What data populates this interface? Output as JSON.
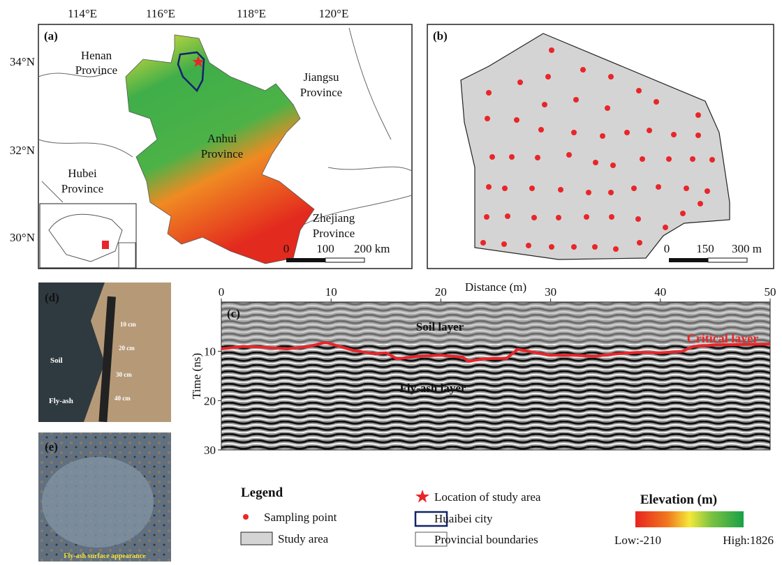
{
  "panel_a": {
    "label": "(a)",
    "lon_labels": [
      "114°E",
      "116°E",
      "118°E",
      "120°E"
    ],
    "lat_labels": [
      "34°N",
      "32°N",
      "30°N"
    ],
    "places": [
      [
        "Henan",
        "Province"
      ],
      [
        "Jiangsu",
        "Province"
      ],
      [
        "Anhui",
        "Province"
      ],
      [
        "Hubei",
        "Province"
      ],
      [
        "Zhejiang",
        "Province"
      ]
    ],
    "scale_bar": [
      "0",
      "100",
      "200 km"
    ]
  },
  "panel_b": {
    "label": "(b)",
    "scale_bar": [
      "0",
      "150",
      "300 m"
    ]
  },
  "panel_c": {
    "label": "(c)",
    "xlabel": "Distance (m)",
    "ylabel": "Time (ns)",
    "xlim": [
      0,
      50
    ],
    "ylim": [
      0,
      30
    ],
    "xticks": [
      0,
      10,
      20,
      30,
      40,
      50
    ],
    "yticks": [
      10,
      20,
      30
    ],
    "annotations": [
      "Soil layer",
      "Fly-ash layer",
      "Critical layer"
    ],
    "critical_layer": {
      "color": "#e8262a",
      "x": [
        0,
        2,
        4,
        6,
        8,
        9.5,
        10,
        12,
        14,
        15,
        16,
        18,
        20,
        22,
        22.5,
        24,
        26,
        27,
        28,
        30,
        32,
        34,
        36,
        38,
        40,
        42,
        43,
        45,
        50
      ],
      "values": [
        9.5,
        9,
        9.2,
        9.5,
        9,
        8.2,
        8.5,
        9.8,
        10.5,
        10.3,
        11.5,
        11,
        10.8,
        11.2,
        12,
        11.5,
        11.4,
        9.6,
        10,
        10.8,
        10.8,
        11,
        10.5,
        10.2,
        10.3,
        10,
        9,
        8.7,
        8.5
      ]
    }
  },
  "panel_d": {
    "label": "(d)",
    "soil": "Soil",
    "fly_ash": "Fly-ash",
    "ruler": [
      "10 cm",
      "20 cm",
      "30 cm",
      "40 cm"
    ]
  },
  "panel_e": {
    "label": "(e)",
    "caption": "Fly-ash surface appearance"
  },
  "legend": {
    "title": "Legend",
    "items": [
      "Sampling point",
      "Study area",
      "Location of study area",
      "Huaibei city",
      "Provincial boundaries"
    ]
  },
  "elevation": {
    "title": "Elevation (m)",
    "low": "Low:-210",
    "high": "High:1826"
  }
}
